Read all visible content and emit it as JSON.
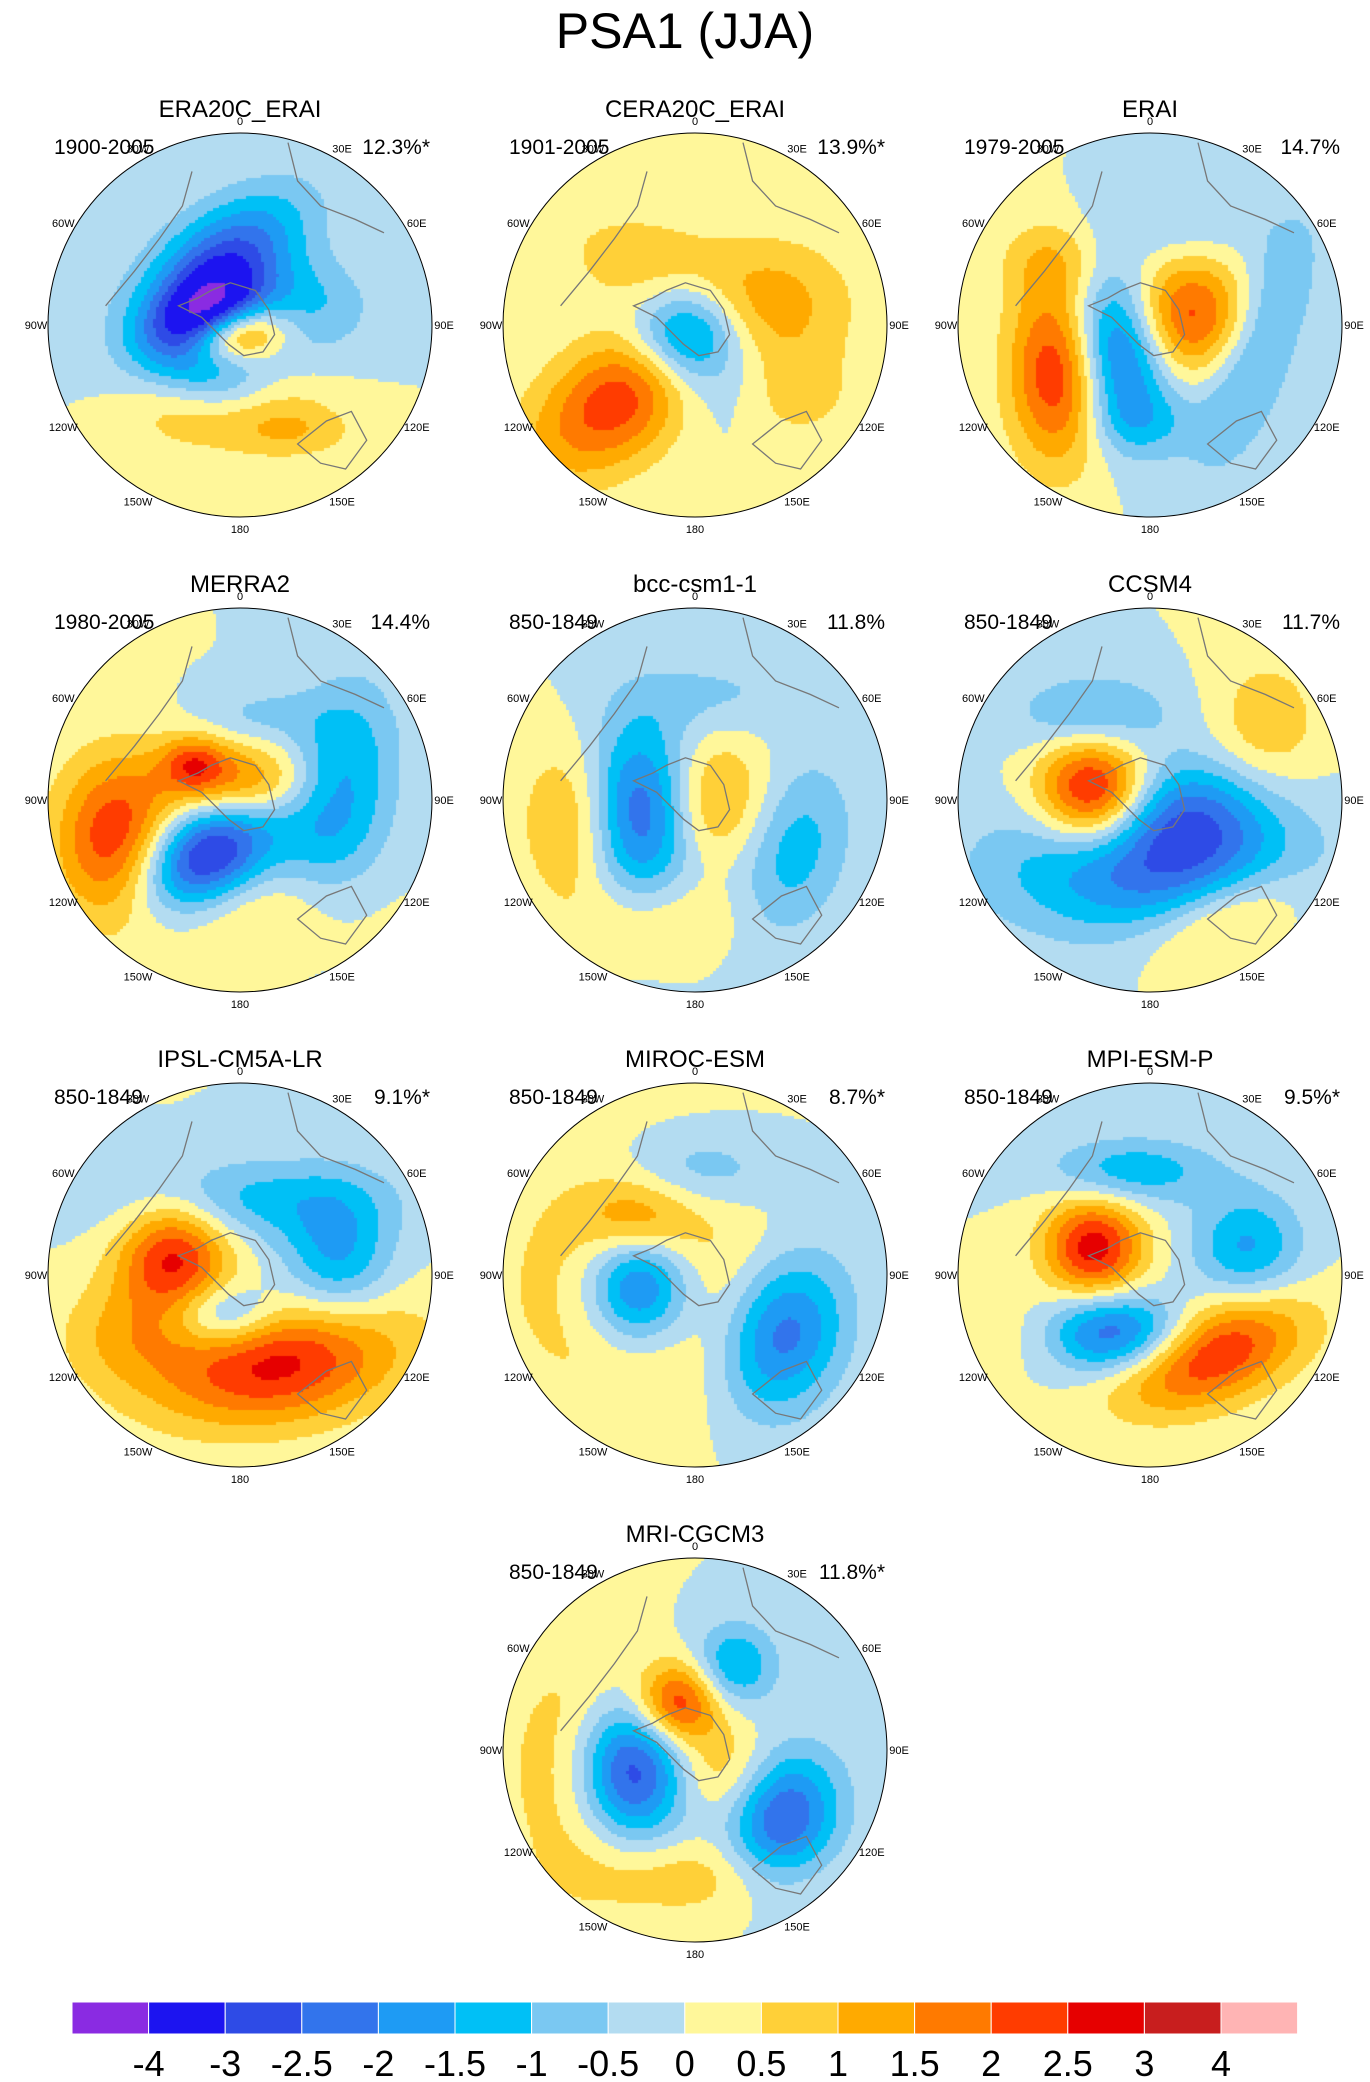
{
  "title": "PSA1 (JJA)",
  "longitude_labels": [
    "0",
    "30E",
    "60E",
    "90E",
    "120E",
    "150E",
    "180",
    "150W",
    "120W",
    "90W",
    "60W",
    "30W"
  ],
  "colorbar": {
    "labels": [
      "-4",
      "-3",
      "-2.5",
      "-2",
      "-1.5",
      "-1",
      "-0.5",
      "0",
      "0.5",
      "1",
      "1.5",
      "2",
      "2.5",
      "3",
      "4"
    ],
    "colors": [
      "#8a2be2",
      "#1c14f0",
      "#2e4be6",
      "#3274ec",
      "#1e9bf4",
      "#00c0f6",
      "#7ac8f2",
      "#b3dcf1",
      "#fff79a",
      "#ffd038",
      "#ffaa00",
      "#ff7a00",
      "#ff3c00",
      "#e60000",
      "#c81e1e",
      "#ffb4b4"
    ]
  },
  "panels": [
    {
      "name": "ERA20C_ERAI",
      "period": "1900-2005",
      "variance": "12.3%*",
      "blobs": [
        [
          -0.1,
          -0.35,
          0.34,
          0.18,
          -35,
          -2.5
        ],
        [
          -0.2,
          -0.05,
          0.22,
          0.14,
          -30,
          -3.0
        ],
        [
          -0.05,
          0.05,
          0.2,
          0.1,
          -10,
          2.8
        ],
        [
          -0.2,
          0.2,
          0.25,
          0.15,
          20,
          -1.5
        ],
        [
          0.3,
          -0.1,
          0.25,
          0.18,
          0,
          -1.2
        ],
        [
          0.1,
          0.45,
          0.25,
          0.15,
          -10,
          0.8
        ],
        [
          0.3,
          0.55,
          0.22,
          0.1,
          0,
          0.7
        ],
        [
          -0.35,
          0.45,
          0.2,
          0.15,
          0,
          0.6
        ]
      ]
    },
    {
      "name": "CERA20C_ERAI",
      "period": "1901-2005",
      "variance": "13.9%*",
      "blobs": [
        [
          -0.35,
          0.35,
          0.4,
          0.22,
          -35,
          2.6
        ],
        [
          -0.05,
          0.05,
          0.2,
          0.18,
          0,
          -3.0
        ],
        [
          0.1,
          0.3,
          0.3,
          0.2,
          -15,
          -0.8
        ],
        [
          0.4,
          -0.1,
          0.3,
          0.25,
          0,
          1.2
        ],
        [
          -0.3,
          -0.35,
          0.3,
          0.18,
          10,
          0.8
        ],
        [
          0.5,
          0.35,
          0.22,
          0.18,
          0,
          0.8
        ]
      ]
    },
    {
      "name": "ERAI",
      "period": "1979-2005",
      "variance": "14.7%",
      "blobs": [
        [
          -0.48,
          0.22,
          0.18,
          0.34,
          0,
          2.7
        ],
        [
          -0.18,
          0.1,
          0.18,
          0.3,
          -10,
          -3.0
        ],
        [
          0.18,
          -0.05,
          0.25,
          0.22,
          0,
          2.3
        ],
        [
          0.55,
          0.1,
          0.15,
          0.45,
          20,
          -1.4
        ],
        [
          -0.05,
          0.5,
          0.2,
          0.12,
          0,
          -0.7
        ],
        [
          0.15,
          -0.55,
          0.3,
          0.15,
          0,
          -0.6
        ],
        [
          -0.5,
          -0.35,
          0.2,
          0.15,
          0,
          0.8
        ]
      ]
    },
    {
      "name": "MERRA2",
      "period": "1980-2005",
      "variance": "14.4%",
      "blobs": [
        [
          -0.65,
          0.2,
          0.22,
          0.3,
          0,
          2.5
        ],
        [
          -0.2,
          0.3,
          0.28,
          0.18,
          -30,
          -3.5
        ],
        [
          0.0,
          -0.1,
          0.28,
          0.14,
          0,
          1.8
        ],
        [
          0.5,
          -0.05,
          0.2,
          0.38,
          10,
          -1.8
        ],
        [
          -0.25,
          -0.2,
          0.12,
          0.1,
          0,
          1.6
        ],
        [
          0.0,
          0.55,
          0.4,
          0.18,
          0,
          0.8
        ],
        [
          0.1,
          -0.45,
          0.22,
          0.1,
          0,
          -0.6
        ]
      ]
    },
    {
      "name": "bcc-csm1-1",
      "period": "850-1849",
      "variance": "11.8%",
      "blobs": [
        [
          -0.3,
          0.05,
          0.22,
          0.32,
          0,
          -3.1
        ],
        [
          0.05,
          0.0,
          0.22,
          0.25,
          0,
          1.6
        ],
        [
          0.5,
          0.25,
          0.2,
          0.32,
          15,
          -1.3
        ],
        [
          -0.6,
          0.1,
          0.2,
          0.3,
          0,
          1.6
        ],
        [
          0.1,
          -0.55,
          0.35,
          0.15,
          0,
          -0.6
        ],
        [
          -0.2,
          0.6,
          0.3,
          0.15,
          0,
          0.7
        ]
      ]
    },
    {
      "name": "CCSM4",
      "period": "850-1849",
      "variance": "11.7%",
      "blobs": [
        [
          -0.3,
          -0.05,
          0.2,
          0.2,
          0,
          3.2
        ],
        [
          0.0,
          0.35,
          0.55,
          0.25,
          0,
          -2.3
        ],
        [
          0.2,
          0.05,
          0.3,
          0.2,
          0,
          -1.6
        ],
        [
          -0.3,
          -0.45,
          0.28,
          0.15,
          0,
          -1.2
        ],
        [
          0.4,
          0.6,
          0.3,
          0.15,
          -20,
          1.4
        ],
        [
          0.6,
          -0.4,
          0.2,
          0.25,
          0,
          0.9
        ]
      ]
    },
    {
      "name": "IPSL-CM5A-LR",
      "period": "850-1849",
      "variance": "9.1%*",
      "blobs": [
        [
          -0.35,
          -0.1,
          0.2,
          0.22,
          0,
          2.6
        ],
        [
          0.2,
          0.45,
          0.45,
          0.22,
          -10,
          2.7
        ],
        [
          0.0,
          -0.4,
          0.5,
          0.15,
          0,
          -1.2
        ],
        [
          0.5,
          -0.1,
          0.2,
          0.25,
          0,
          -1.6
        ],
        [
          -0.1,
          0.2,
          0.2,
          0.12,
          0,
          -1.6
        ],
        [
          -0.6,
          0.3,
          0.25,
          0.2,
          0,
          1.0
        ]
      ]
    },
    {
      "name": "MIROC-ESM",
      "period": "850-1849",
      "variance": "8.7%*",
      "blobs": [
        [
          -0.3,
          0.05,
          0.2,
          0.22,
          0,
          -3.1
        ],
        [
          -0.3,
          0.05,
          0.48,
          0.45,
          0,
          1.2
        ],
        [
          0.45,
          0.3,
          0.22,
          0.3,
          20,
          -2.4
        ],
        [
          0.0,
          -0.55,
          0.3,
          0.15,
          0,
          -1.0
        ],
        [
          -0.3,
          -0.3,
          0.2,
          0.15,
          0,
          1.2
        ]
      ]
    },
    {
      "name": "MPI-ESM-P",
      "period": "850-1849",
      "variance": "9.5%*",
      "blobs": [
        [
          -0.3,
          -0.15,
          0.18,
          0.18,
          0,
          2.8
        ],
        [
          -0.2,
          0.3,
          0.3,
          0.15,
          0,
          -2.7
        ],
        [
          0.3,
          0.4,
          0.35,
          0.18,
          -20,
          2.8
        ],
        [
          0.5,
          -0.15,
          0.2,
          0.2,
          0,
          -1.6
        ],
        [
          -0.1,
          -0.55,
          0.3,
          0.12,
          0,
          -1.4
        ],
        [
          -0.6,
          0.3,
          0.2,
          0.15,
          0,
          0.8
        ]
      ]
    },
    {
      "name": "MRI-CGCM3",
      "period": "850-1849",
      "variance": "11.8%*",
      "blobs": [
        [
          -0.35,
          0.1,
          0.22,
          0.26,
          0,
          -3.5
        ],
        [
          0.45,
          0.35,
          0.2,
          0.25,
          20,
          -2.6
        ],
        [
          -0.1,
          -0.25,
          0.15,
          0.15,
          0,
          2.6
        ],
        [
          0.2,
          -0.45,
          0.15,
          0.15,
          0,
          -1.6
        ],
        [
          -0.6,
          0.1,
          0.25,
          0.4,
          0,
          1.4
        ],
        [
          0.1,
          0.1,
          0.2,
          0.2,
          0,
          1.1
        ],
        [
          0.0,
          0.65,
          0.4,
          0.15,
          0,
          0.9
        ]
      ]
    }
  ]
}
